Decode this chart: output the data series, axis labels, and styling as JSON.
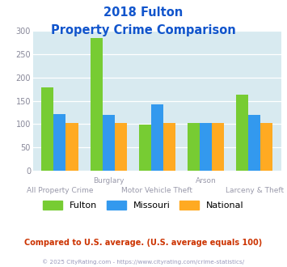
{
  "title_line1": "2018 Fulton",
  "title_line2": "Property Crime Comparison",
  "x_labels_top": [
    "",
    "Burglary",
    "",
    "Arson",
    ""
  ],
  "x_labels_bottom": [
    "All Property Crime",
    "",
    "Motor Vehicle Theft",
    "",
    "Larceny & Theft"
  ],
  "fulton": [
    178,
    285,
    99,
    103,
    163
  ],
  "missouri": [
    122,
    120,
    143,
    103,
    120
  ],
  "national": [
    102,
    102,
    102,
    103,
    102
  ],
  "ylim": [
    0,
    300
  ],
  "yticks": [
    0,
    50,
    100,
    150,
    200,
    250,
    300
  ],
  "bar_color_fulton": "#77cc33",
  "bar_color_missouri": "#3399ee",
  "bar_color_national": "#ffaa22",
  "title_color": "#1155cc",
  "bg_color": "#d8eaf0",
  "grid_color": "#ffffff",
  "ylabel_color": "#888899",
  "xlabel_color": "#9999aa",
  "footer_text": "Compared to U.S. average. (U.S. average equals 100)",
  "copyright_text": "© 2025 CityRating.com - https://www.cityrating.com/crime-statistics/",
  "footer_color": "#cc3300",
  "copyright_color": "#9999bb",
  "bar_width": 0.25
}
